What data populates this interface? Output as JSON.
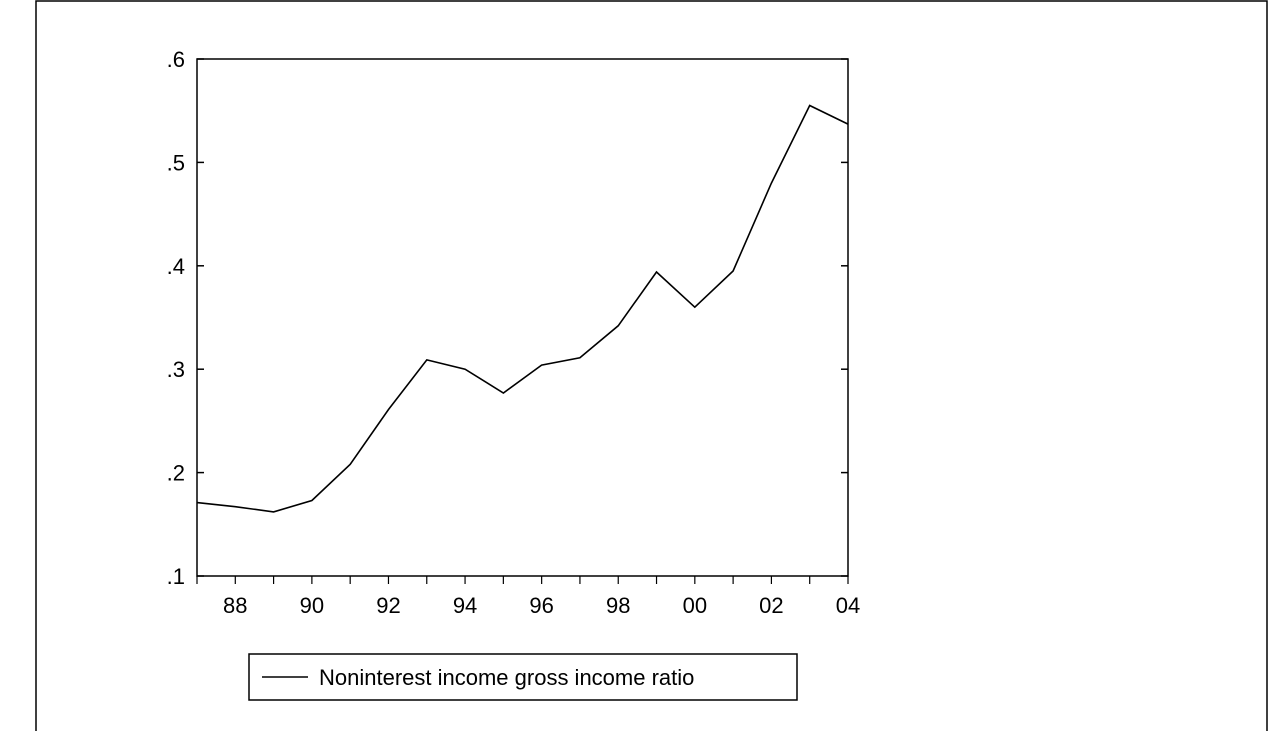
{
  "chart_data": {
    "type": "line",
    "title": "",
    "xlabel": "",
    "ylabel": "",
    "x": [
      1987,
      1988,
      1989,
      1990,
      1991,
      1992,
      1993,
      1994,
      1995,
      1996,
      1997,
      1998,
      1999,
      2000,
      2001,
      2002,
      2003,
      2004
    ],
    "xlim": [
      1987,
      2004
    ],
    "xticks": [
      1988,
      1990,
      1992,
      1994,
      1996,
      1998,
      2000,
      2002,
      2004
    ],
    "xtick_labels": [
      "88",
      "90",
      "92",
      "94",
      "96",
      "98",
      "00",
      "02",
      "04"
    ],
    "ylim": [
      0.1,
      0.6
    ],
    "yticks": [
      0.1,
      0.2,
      0.3,
      0.4,
      0.5,
      0.6
    ],
    "ytick_labels": [
      ".1",
      ".2",
      ".3",
      ".4",
      ".5",
      ".6"
    ],
    "grid": false,
    "legend_position": "bottom",
    "series": [
      {
        "name": "Noninterest income gross income ratio",
        "color": "#000000",
        "values": [
          0.171,
          0.167,
          0.162,
          0.173,
          0.208,
          0.261,
          0.309,
          0.3,
          0.277,
          0.304,
          0.311,
          0.342,
          0.394,
          0.36,
          0.395,
          0.48,
          0.555,
          0.537
        ]
      }
    ]
  }
}
